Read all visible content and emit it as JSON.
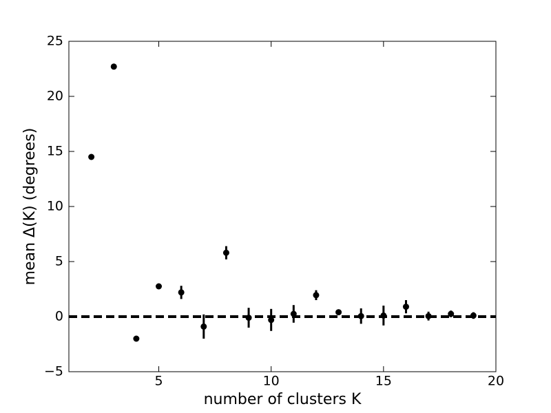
{
  "chart_data": {
    "type": "errorbar",
    "xlabel": "number of clusters K",
    "ylabel": "mean Δ(K) (degrees)",
    "x": [
      2,
      3,
      4,
      5,
      6,
      7,
      8,
      9,
      10,
      11,
      12,
      13,
      14,
      15,
      16,
      17,
      18,
      19
    ],
    "values": [
      14.5,
      22.7,
      -2.0,
      2.75,
      2.2,
      -0.9,
      5.8,
      -0.1,
      -0.3,
      0.25,
      1.95,
      0.4,
      0.05,
      0.1,
      0.9,
      0.05,
      0.25,
      0.1
    ],
    "errors": [
      0.1,
      0.1,
      0.1,
      0.2,
      0.6,
      1.1,
      0.6,
      0.9,
      1.0,
      0.8,
      0.45,
      0.2,
      0.7,
      0.9,
      0.6,
      0.4,
      0.3,
      0.3
    ],
    "color": "#000000",
    "hline": 0,
    "xlim": [
      1,
      20
    ],
    "xticks": [
      5,
      10,
      15,
      20
    ],
    "ylim": [
      -5,
      25
    ],
    "yticks": [
      {
        "value": -5,
        "label": "−5"
      },
      0,
      5,
      10,
      15,
      20,
      25
    ]
  }
}
